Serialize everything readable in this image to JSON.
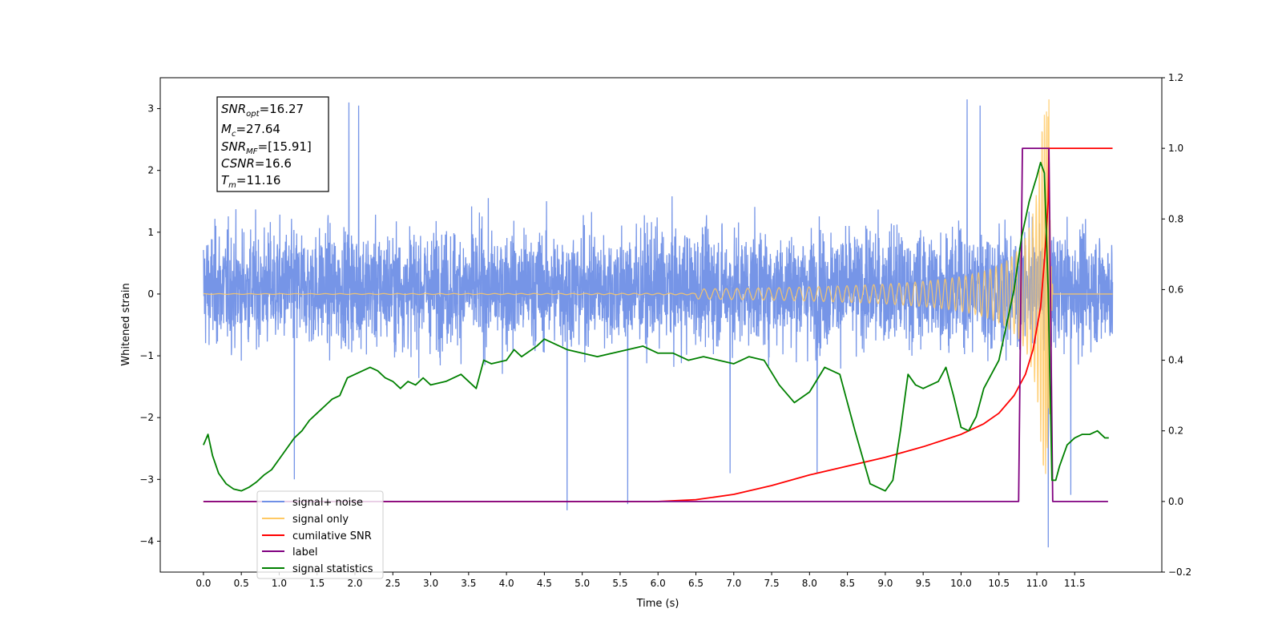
{
  "chart_data": {
    "type": "line",
    "xlabel": "Time (s)",
    "ylabel": "Whitened strain",
    "xlim": [
      -0.57,
      12.65
    ],
    "ylim": [
      -4.5,
      3.5
    ],
    "y2lim": [
      -0.2,
      1.2
    ],
    "x_ticks": [
      0.0,
      0.5,
      1.0,
      1.5,
      2.0,
      2.5,
      3.0,
      3.5,
      4.0,
      4.5,
      5.0,
      5.5,
      6.0,
      6.5,
      7.0,
      7.5,
      8.0,
      8.5,
      9.0,
      9.5,
      10.0,
      10.5,
      11.0,
      11.5
    ],
    "x_tick_labels": [
      "0.0",
      "0.5",
      "1.0",
      "1.5",
      "2.0",
      "2.5",
      "3.0",
      "3.5",
      "4.0",
      "4.5",
      "5.0",
      "5.5",
      "6.0",
      "6.5",
      "7.0",
      "7.5",
      "8.0",
      "8.5",
      "9.0",
      "9.5",
      "10.0",
      "10.5",
      "11.0",
      "11.5"
    ],
    "y_ticks": [
      3,
      2,
      1,
      0,
      -1,
      -2,
      -3,
      -4
    ],
    "y_tick_labels": [
      "3",
      "2",
      "1",
      "0",
      "−1",
      "−2",
      "−3",
      "−4"
    ],
    "y2_ticks": [
      1.2,
      1.0,
      0.8,
      0.6,
      0.4,
      0.2,
      0.0,
      -0.2
    ],
    "y2_tick_labels": [
      "1.2",
      "1.0",
      "0.8",
      "0.6",
      "0.4",
      "0.2",
      "0.0",
      "−0.2"
    ],
    "grid": false,
    "legend_position": "lower-left",
    "legend": [
      {
        "label": "signal+ noise",
        "color": "#6f8fe6"
      },
      {
        "label": "signal only",
        "color": "#ffc964"
      },
      {
        "label": "cumilative SNR",
        "color": "#ff0000"
      },
      {
        "label": "label",
        "color": "#800080"
      },
      {
        "label": "signal statistics",
        "color": "#008000"
      }
    ],
    "annotation": {
      "snr_opt": {
        "label": "SNR",
        "sub": "opt",
        "value": "=16.27"
      },
      "mc": {
        "label": "M",
        "sub": "c",
        "value": "=27.64"
      },
      "snr_mf": {
        "label": "SNR",
        "sub": "MF",
        "value": "=[15.91]"
      },
      "csnr": {
        "label": "CSNR",
        "value": "=16.6"
      },
      "tm": {
        "label": "T",
        "sub": "m",
        "value": "=11.16"
      }
    },
    "series": [
      {
        "name": "signal+ noise",
        "color": "#6f8fe6",
        "axis": "left",
        "x_range": [
          0.0,
          12.0
        ],
        "description_range": [
          -2.5,
          2.5
        ],
        "spikes": [
          [
            1.2,
            -3.0
          ],
          [
            1.92,
            3.1
          ],
          [
            2.05,
            3.05
          ],
          [
            4.8,
            -3.5
          ],
          [
            5.6,
            -3.4
          ],
          [
            10.08,
            3.15
          ],
          [
            10.25,
            3.05
          ],
          [
            11.15,
            2.9
          ],
          [
            11.15,
            -4.1
          ],
          [
            11.45,
            -3.25
          ],
          [
            6.95,
            -2.9
          ],
          [
            8.1,
            -2.9
          ]
        ]
      },
      {
        "name": "signal only",
        "color": "#ffc964",
        "axis": "left",
        "t_merge": 11.16,
        "peak": 3.15
      },
      {
        "name": "cumilative SNR",
        "color": "#ff0000",
        "axis": "right",
        "x": [
          0.0,
          6.0,
          6.5,
          7.0,
          7.5,
          8.0,
          8.5,
          9.0,
          9.5,
          10.0,
          10.3,
          10.5,
          10.7,
          10.85,
          10.95,
          11.05,
          11.1,
          11.15,
          11.16,
          12.0
        ],
        "y": [
          0.0,
          0.0,
          0.005,
          0.02,
          0.045,
          0.075,
          0.1,
          0.125,
          0.155,
          0.19,
          0.22,
          0.25,
          0.3,
          0.36,
          0.43,
          0.55,
          0.68,
          0.85,
          1.0,
          1.0
        ]
      },
      {
        "name": "label",
        "color": "#800080",
        "axis": "right",
        "x": [
          0.0,
          10.76,
          10.81,
          11.16,
          11.21,
          11.94
        ],
        "y": [
          0.0,
          0.0,
          1.0,
          1.0,
          0.0,
          0.0
        ]
      },
      {
        "name": "signal statistics",
        "color": "#008000",
        "axis": "right",
        "x": [
          0.0,
          0.06,
          0.12,
          0.2,
          0.3,
          0.4,
          0.5,
          0.6,
          0.7,
          0.8,
          0.9,
          1.0,
          1.1,
          1.2,
          1.3,
          1.4,
          1.5,
          1.6,
          1.7,
          1.8,
          1.9,
          2.0,
          2.1,
          2.2,
          2.3,
          2.4,
          2.5,
          2.6,
          2.7,
          2.8,
          2.9,
          3.0,
          3.2,
          3.4,
          3.6,
          3.7,
          3.8,
          4.0,
          4.1,
          4.2,
          4.4,
          4.5,
          4.6,
          4.8,
          5.0,
          5.2,
          5.4,
          5.6,
          5.8,
          6.0,
          6.2,
          6.4,
          6.6,
          6.8,
          7.0,
          7.2,
          7.4,
          7.6,
          7.8,
          8.0,
          8.2,
          8.4,
          8.6,
          8.8,
          9.0,
          9.1,
          9.2,
          9.3,
          9.4,
          9.5,
          9.6,
          9.7,
          9.8,
          9.9,
          10.0,
          10.1,
          10.2,
          10.3,
          10.4,
          10.5,
          10.6,
          10.7,
          10.8,
          10.9,
          11.0,
          11.05,
          11.1,
          11.15,
          11.2,
          11.25,
          11.3,
          11.35,
          11.4,
          11.5,
          11.6,
          11.7,
          11.8,
          11.9,
          11.95
        ],
        "y": [
          0.16,
          0.19,
          0.13,
          0.08,
          0.05,
          0.035,
          0.03,
          0.04,
          0.055,
          0.075,
          0.09,
          0.12,
          0.15,
          0.18,
          0.2,
          0.23,
          0.25,
          0.27,
          0.29,
          0.3,
          0.35,
          0.36,
          0.37,
          0.38,
          0.37,
          0.35,
          0.34,
          0.32,
          0.34,
          0.33,
          0.35,
          0.33,
          0.34,
          0.36,
          0.32,
          0.4,
          0.39,
          0.4,
          0.43,
          0.41,
          0.44,
          0.46,
          0.45,
          0.43,
          0.42,
          0.41,
          0.42,
          0.43,
          0.44,
          0.42,
          0.42,
          0.4,
          0.41,
          0.4,
          0.39,
          0.41,
          0.4,
          0.33,
          0.28,
          0.31,
          0.38,
          0.36,
          0.2,
          0.05,
          0.03,
          0.06,
          0.2,
          0.36,
          0.33,
          0.32,
          0.33,
          0.34,
          0.38,
          0.3,
          0.21,
          0.2,
          0.24,
          0.32,
          0.36,
          0.4,
          0.5,
          0.6,
          0.75,
          0.85,
          0.92,
          0.96,
          0.93,
          0.6,
          0.06,
          0.06,
          0.1,
          0.13,
          0.16,
          0.18,
          0.19,
          0.19,
          0.2,
          0.18,
          0.18
        ]
      }
    ]
  }
}
